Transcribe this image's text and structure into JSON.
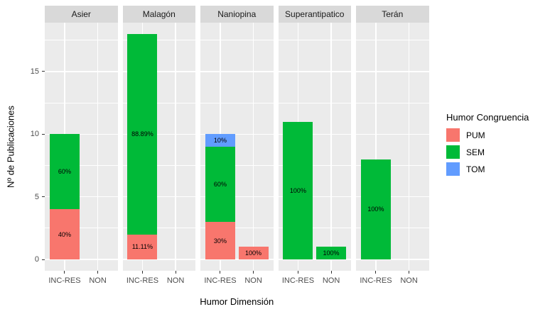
{
  "legend": {
    "title": "Humor Congruencia",
    "entries": [
      {
        "label": "PUM",
        "color": "#F8766D"
      },
      {
        "label": "SEM",
        "color": "#00BA38"
      },
      {
        "label": "TOM",
        "color": "#619CFF"
      }
    ]
  },
  "colors": {
    "panel_bg": "#EBEBEB",
    "strip_bg": "#D9D9D9",
    "grid": "#FFFFFF",
    "tick": "#333333",
    "tick_label": "#4D4D4D"
  },
  "chart_data": {
    "type": "bar",
    "stacked": true,
    "title": "",
    "xlabel": "Humor Dimensión",
    "ylabel": "Nº de Publicaciones",
    "categories": [
      "INC-RES",
      "NON"
    ],
    "yticks": [
      0,
      5,
      10,
      15
    ],
    "yticks_minor": [
      2.5,
      7.5,
      12.5,
      17.5
    ],
    "ylim": [
      -0.9,
      18.9
    ],
    "grid": "on",
    "legend_position": "right",
    "series_colors": {
      "PUM": "#F8766D",
      "SEM": "#00BA38",
      "TOM": "#619CFF"
    },
    "facets": [
      {
        "label": "Asier",
        "bars": [
          {
            "category": "INC-RES",
            "segments": [
              {
                "series": "PUM",
                "value": 4,
                "pct_label": "40%"
              },
              {
                "series": "SEM",
                "value": 6,
                "pct_label": "60%"
              }
            ]
          },
          {
            "category": "NON",
            "segments": []
          }
        ]
      },
      {
        "label": "Malagón",
        "bars": [
          {
            "category": "INC-RES",
            "segments": [
              {
                "series": "PUM",
                "value": 2,
                "pct_label": "11.11%"
              },
              {
                "series": "SEM",
                "value": 16,
                "pct_label": "88.89%"
              }
            ]
          },
          {
            "category": "NON",
            "segments": []
          }
        ]
      },
      {
        "label": "Naniopina",
        "bars": [
          {
            "category": "INC-RES",
            "segments": [
              {
                "series": "PUM",
                "value": 3,
                "pct_label": "30%"
              },
              {
                "series": "SEM",
                "value": 6,
                "pct_label": "60%"
              },
              {
                "series": "TOM",
                "value": 1,
                "pct_label": "10%"
              }
            ]
          },
          {
            "category": "NON",
            "segments": [
              {
                "series": "PUM",
                "value": 1,
                "pct_label": "100%"
              }
            ]
          }
        ]
      },
      {
        "label": "Superantipatico",
        "bars": [
          {
            "category": "INC-RES",
            "segments": [
              {
                "series": "SEM",
                "value": 11,
                "pct_label": "100%"
              }
            ]
          },
          {
            "category": "NON",
            "segments": [
              {
                "series": "SEM",
                "value": 1,
                "pct_label": "100%"
              }
            ]
          }
        ]
      },
      {
        "label": "Terán",
        "bars": [
          {
            "category": "INC-RES",
            "segments": [
              {
                "series": "SEM",
                "value": 8,
                "pct_label": "100%"
              }
            ]
          },
          {
            "category": "NON",
            "segments": []
          }
        ]
      }
    ]
  }
}
